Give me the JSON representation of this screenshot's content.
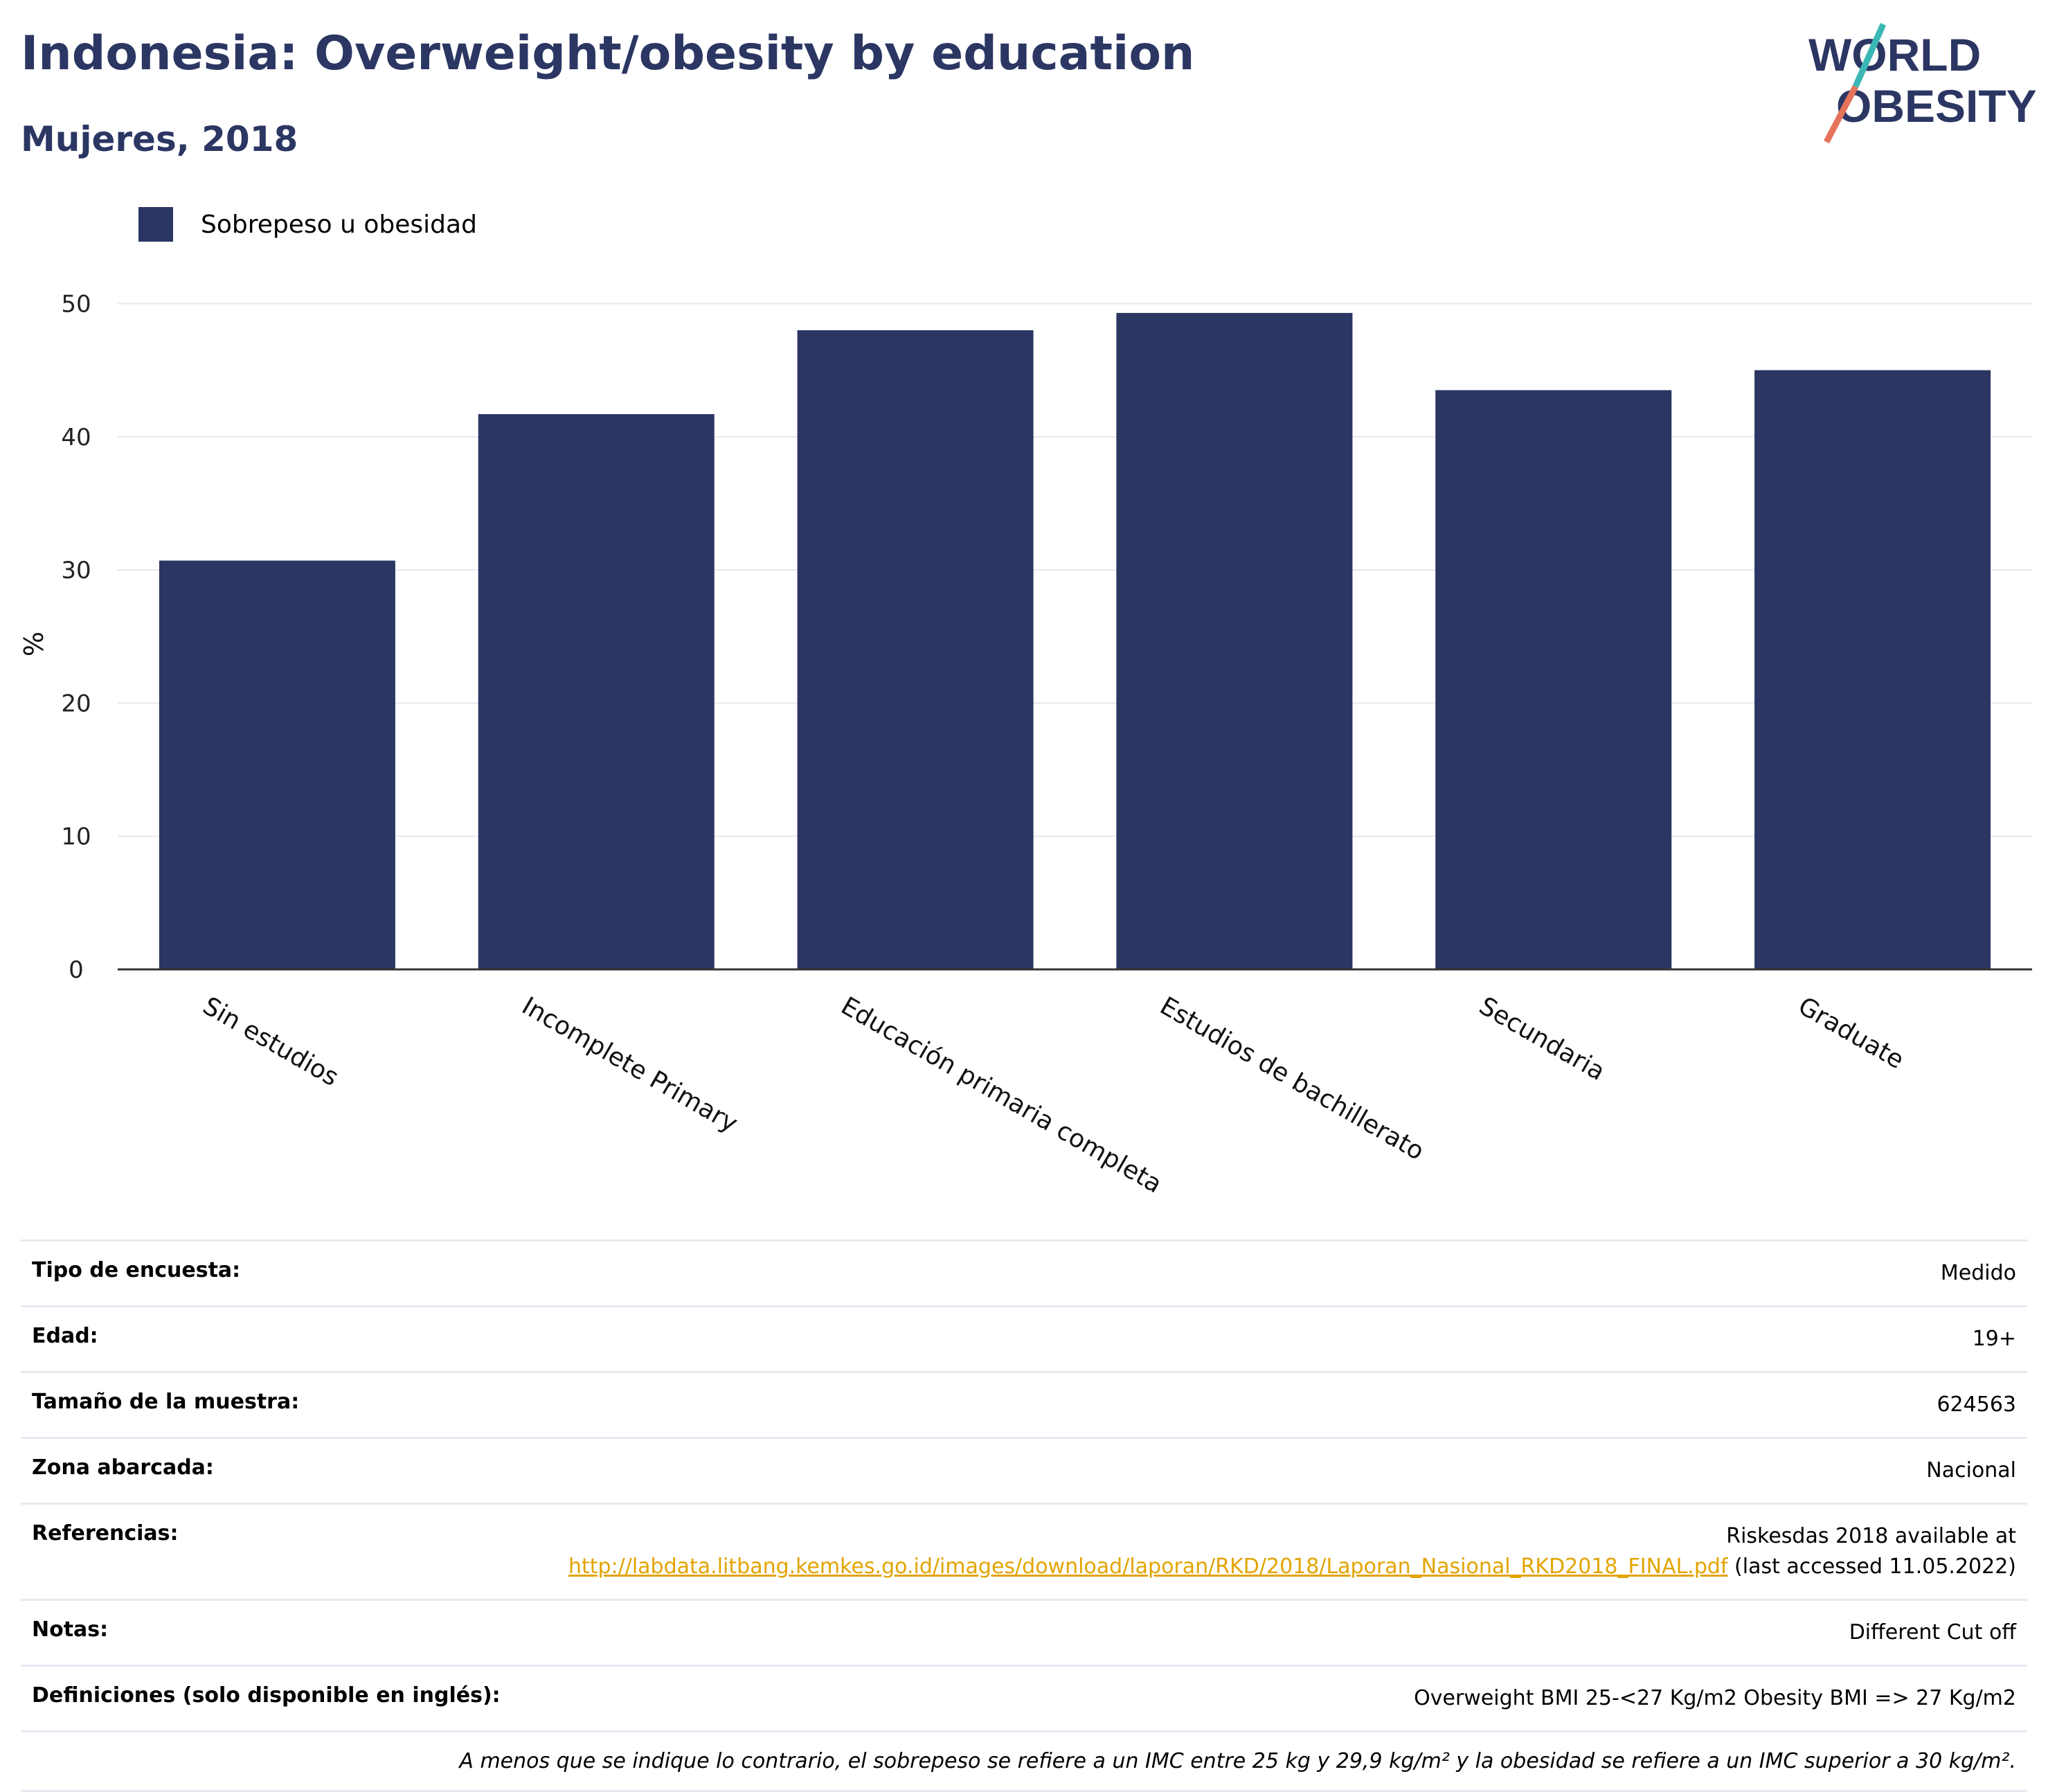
{
  "header": {
    "title": "Indonesia: Overweight/obesity by education",
    "subtitle": "Mujeres, 2018",
    "logo_line1": "WORLD",
    "logo_line2": "OBESITY"
  },
  "colors": {
    "bar": "#2b3663",
    "title": "#2b3663",
    "link": "#e2a400",
    "logo_teal": "#3bb8b5",
    "logo_coral": "#e5735c"
  },
  "chart_data": {
    "type": "bar",
    "categories": [
      "Sin estudios",
      "Incomplete Primary",
      "Educación primaria completa",
      "Estudios de bachillerato",
      "Secundaria",
      "Graduate"
    ],
    "series": [
      {
        "name": "Sobrepeso u obesidad",
        "values": [
          30.7,
          41.7,
          48.0,
          49.3,
          43.5,
          45.0
        ]
      }
    ],
    "ylabel": "%",
    "xlabel": "",
    "ylim": [
      0,
      52
    ],
    "yticks": [
      0,
      10,
      20,
      30,
      40,
      50
    ],
    "grid": true,
    "legend": "top-left"
  },
  "info_table": [
    {
      "key": "Tipo de encuesta:",
      "value": "Medido"
    },
    {
      "key": "Edad:",
      "value": "19+"
    },
    {
      "key": "Tamaño de la muestra:",
      "value": "624563"
    },
    {
      "key": "Zona abarcada:",
      "value": "Nacional"
    }
  ],
  "references": {
    "key": "Referencias:",
    "text_before": "Riskesdas 2018 available at",
    "link": "http://labdata.litbang.kemkes.go.id/images/download/laporan/RKD/2018/Laporan_Nasional_RKD2018_FINAL.pdf",
    "text_after": "(last accessed 11.05.2022)"
  },
  "info_table2": [
    {
      "key": "Notas:",
      "value": "Different Cut off"
    },
    {
      "key": "Definiciones (solo disponible en inglés):",
      "value": "Overweight BMI 25-<27 Kg/m2 Obesity BMI => 27 Kg/m2"
    }
  ],
  "footnote": "A menos que se indique lo contrario, el sobrepeso se refiere a un IMC entre 25 kg y 29,9 kg/m² y la obesidad se refiere a un IMC superior a 30 kg/m²."
}
